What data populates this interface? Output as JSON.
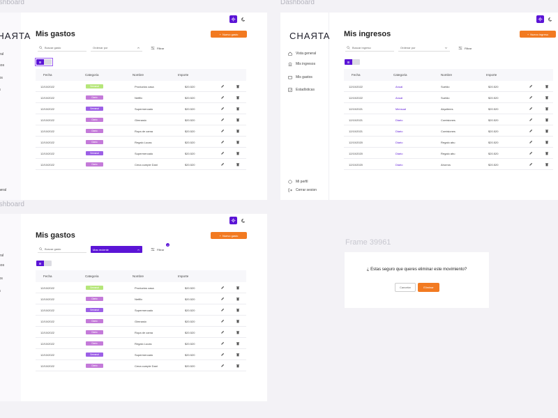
{
  "frames": {
    "label_top_left": "Dashboard",
    "label_top_right": "Dashboard",
    "label_bottom_left": "Dashboard",
    "label_modal": "Frame 39961"
  },
  "colors": {
    "accent": "#5b14d6",
    "cta": "#f27a21",
    "tag_green": "#b6e67a",
    "tag_violet": "#9c5fe6",
    "tag_pink": "#c47ad9"
  },
  "brand": {
    "logo": "CHAЯTA"
  },
  "nav": {
    "items": [
      "Vista general",
      "Mis ingresos",
      "Mis gastos",
      "Estadísticas"
    ],
    "profile": "Mi perfil",
    "logout": "Cerrar sesion"
  },
  "gastos": {
    "title": "Mis gastos",
    "new_button": "Nuevo gasto",
    "search_placeholder": "Buscar gasto",
    "sort_placeholder": "Ordenar por",
    "sort_selected": "Mas reciente",
    "filter": "Filtrar",
    "filter_count": "2",
    "columns": [
      "Fecha",
      "Categoria",
      "Nombre",
      "Importe"
    ],
    "rows": [
      {
        "date": "12/10/2022",
        "category": "Semanal",
        "tag": "green",
        "name": "Productos casa",
        "amount": "$20.520"
      },
      {
        "date": "12/10/2022",
        "category": "Diario",
        "tag": "pink",
        "name": "Netflix",
        "amount": "$20.520"
      },
      {
        "date": "12/10/2022",
        "category": "Semanal",
        "tag": "violet",
        "name": "Supermercado",
        "amount": "$20.520"
      },
      {
        "date": "12/10/2022",
        "category": "Diario",
        "tag": "pink",
        "name": "Gimnasio",
        "amount": "$20.520"
      },
      {
        "date": "12/10/2022",
        "category": "Diario",
        "tag": "pink",
        "name": "Ropa de cama",
        "amount": "$20.520"
      },
      {
        "date": "12/10/2022",
        "category": "Diario",
        "tag": "pink",
        "name": "Regalo Lucas",
        "amount": "$20.520"
      },
      {
        "date": "12/10/2022",
        "category": "Semanal",
        "tag": "violet",
        "name": "Supermercado",
        "amount": "$20.520"
      },
      {
        "date": "12/10/2022",
        "category": "Diario",
        "tag": "pink",
        "name": "Cena cumple Dani",
        "amount": "$20.520"
      }
    ]
  },
  "ingresos": {
    "title": "Mis ingresos",
    "new_button": "Nuevo ingreso",
    "search_placeholder": "Buscar ingreso",
    "sort_placeholder": "Ordenar por",
    "filter": "Filtrar",
    "columns": [
      "Fecha",
      "Categoria",
      "Nombre",
      "Importe"
    ],
    "rows": [
      {
        "date": "12/10/2022",
        "category": "Anual",
        "name": "Sueldo",
        "amount": "$20.520"
      },
      {
        "date": "12/10/2022",
        "category": "Anual",
        "name": "Sueldo",
        "amount": "$20.520"
      },
      {
        "date": "12/10/2021",
        "category": "Mensual",
        "name": "Alquileres",
        "amount": "$20.520"
      },
      {
        "date": "12/10/2021",
        "category": "Diario",
        "name": "Comisiones",
        "amount": "$20.520"
      },
      {
        "date": "12/10/2021",
        "category": "Diario",
        "name": "Comisiones",
        "amount": "$20.520"
      },
      {
        "date": "12/10/2020",
        "category": "Diario",
        "name": "Regalo abu",
        "amount": "$20.520"
      },
      {
        "date": "12/10/2020",
        "category": "Diario",
        "name": "Regalo abu",
        "amount": "$20.520"
      },
      {
        "date": "12/10/2020",
        "category": "Diario",
        "name": "Ahorros",
        "amount": "$20.520"
      }
    ]
  },
  "modal": {
    "question": "¿ Estas seguro que queres eliminar este movimiento?",
    "cancel": "Cancelar",
    "confirm": "Eliminar"
  },
  "icons": {
    "theme": "sun-icon",
    "dark": "moon-icon",
    "edit": "pencil-icon",
    "delete": "trash-icon"
  }
}
